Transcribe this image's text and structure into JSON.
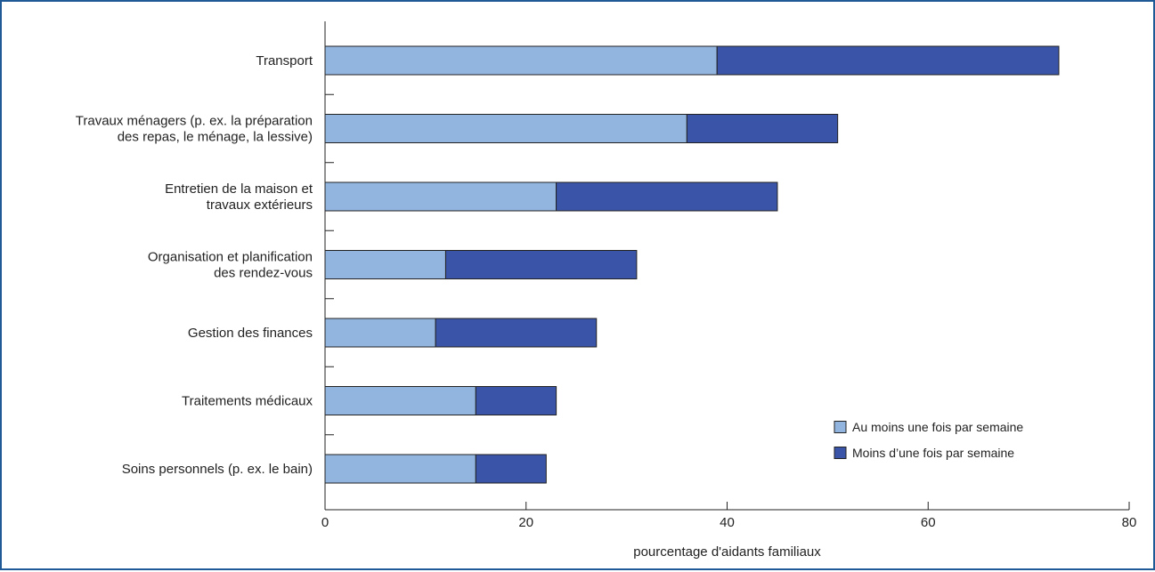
{
  "chart_data": {
    "type": "bar",
    "orientation": "horizontal",
    "stacked": true,
    "categories": [
      [
        "Transport"
      ],
      [
        "Travaux ménagers (p. ex. la préparation",
        "des repas, le ménage, la lessive)"
      ],
      [
        "Entretien de la maison et",
        "travaux extérieurs"
      ],
      [
        "Organisation et planification",
        "des rendez-vous"
      ],
      [
        "Gestion des finances"
      ],
      [
        "Traitements médicaux"
      ],
      [
        "Soins personnels (p. ex. le bain)"
      ]
    ],
    "series": [
      {
        "name": "Au moins une fois par semaine",
        "color": "#92b5e0",
        "values": [
          39,
          36,
          23,
          12,
          11,
          15,
          15
        ]
      },
      {
        "name": "Moins d’une fois par semaine",
        "color": "#3a55a8",
        "values": [
          34,
          15,
          22,
          19,
          16,
          8,
          7
        ]
      }
    ],
    "xlabel": "pourcentage d'aidants familiaux",
    "xlim": [
      0,
      80
    ],
    "xticks": [
      0,
      20,
      40,
      60,
      80
    ],
    "grid": false,
    "legend_position": "bottom-right"
  },
  "colors": {
    "frame_border": "#1f5a96",
    "bar_outline": "#222222"
  }
}
